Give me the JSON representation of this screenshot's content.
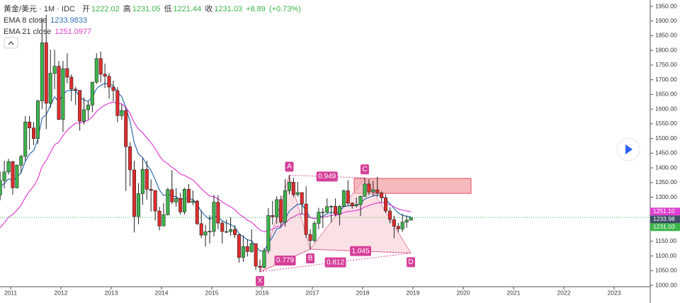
{
  "header": {
    "symbol": "黄金/美元 · 1M · IDC",
    "open_label": "开",
    "open": 1222.02,
    "high_label": "高",
    "high": 1231.05,
    "low_label": "低",
    "low": 1221.44,
    "close_label": "收",
    "close": 1231.03,
    "change": {
      "value": 8.89,
      "label": "+8.89"
    },
    "change_pct": {
      "value": 0.73,
      "label": "(+0.73%)"
    }
  },
  "chart_data": {
    "type": "candlestick",
    "up_color": "#3cb54a",
    "down_color": "#e32b2b",
    "open": [
      1308,
      1357,
      1386,
      1421,
      1332,
      1409,
      1439,
      1556,
      1536,
      1500,
      1628,
      1826,
      1620,
      1722,
      1746,
      1565,
      1738,
      1709,
      1668,
      1664,
      1559,
      1598,
      1614,
      1692,
      1772,
      1719,
      1712,
      1675,
      1663,
      1578,
      1595,
      1472,
      1393,
      1234,
      1312,
      1395,
      1327,
      1323,
      1253,
      1202,
      1240,
      1326,
      1284,
      1296,
      1250,
      1327,
      1282,
      1287,
      1210,
      1171,
      1182,
      1184,
      1283,
      1212,
      1183,
      1183,
      1190,
      1172,
      1095,
      1132,
      1115,
      1142,
      1065,
      1061,
      1118,
      1238,
      1233,
      1292,
      1215,
      1322,
      1351,
      1309,
      1316,
      1277,
      1173,
      1152,
      1211,
      1249,
      1249,
      1268,
      1269,
      1242,
      1269,
      1322,
      1280,
      1271,
      1275,
      1303,
      1345,
      1318,
      1325,
      1315,
      1298,
      1253,
      1224,
      1201,
      1192,
      1215,
      1222.02
    ],
    "high": [
      1387,
      1424,
      1431,
      1424,
      1411,
      1445,
      1576,
      1577,
      1556,
      1632,
      1911,
      1921,
      1803,
      1802,
      1764,
      1764,
      1790,
      1718,
      1676,
      1665,
      1640,
      1627,
      1692,
      1790,
      1796,
      1755,
      1723,
      1697,
      1675,
      1617,
      1608,
      1487,
      1424,
      1348,
      1433,
      1424,
      1361,
      1323,
      1267,
      1280,
      1332,
      1392,
      1331,
      1315,
      1332,
      1345,
      1323,
      1291,
      1255,
      1206,
      1239,
      1307,
      1307,
      1220,
      1224,
      1232,
      1204,
      1175,
      1170,
      1157,
      1191,
      1142,
      1088,
      1127,
      1263,
      1287,
      1303,
      1305,
      1362,
      1375,
      1366,
      1352,
      1317,
      1337,
      1191,
      1219,
      1264,
      1263,
      1296,
      1273,
      1296,
      1273,
      1326,
      1358,
      1283,
      1299,
      1305,
      1366,
      1361,
      1356,
      1369,
      1320,
      1310,
      1266,
      1237,
      1212,
      1243,
      1238,
      1231.05
    ],
    "low": [
      1290,
      1330,
      1377,
      1308,
      1330,
      1381,
      1423,
      1462,
      1478,
      1481,
      1600,
      1532,
      1604,
      1668,
      1562,
      1522,
      1688,
      1627,
      1614,
      1527,
      1548,
      1565,
      1590,
      1686,
      1691,
      1672,
      1636,
      1626,
      1555,
      1563,
      1321,
      1338,
      1180,
      1208,
      1274,
      1292,
      1251,
      1221,
      1187,
      1202,
      1238,
      1277,
      1268,
      1240,
      1241,
      1280,
      1273,
      1205,
      1161,
      1132,
      1142,
      1167,
      1191,
      1142,
      1178,
      1169,
      1162,
      1077,
      1080,
      1098,
      1111,
      1052,
      1046,
      1058,
      1108,
      1207,
      1209,
      1199,
      1200,
      1310,
      1300,
      1302,
      1241,
      1161,
      1123,
      1146,
      1191,
      1195,
      1245,
      1214,
      1236,
      1204,
      1267,
      1271,
      1261,
      1265,
      1236,
      1302,
      1307,
      1302,
      1302,
      1282,
      1246,
      1211,
      1160,
      1180,
      1182,
      1196,
      1221.44
    ],
    "close": [
      1357,
      1386,
      1421,
      1332,
      1409,
      1439,
      1556,
      1536,
      1500,
      1628,
      1826,
      1620,
      1722,
      1746,
      1565,
      1738,
      1709,
      1668,
      1664,
      1559,
      1598,
      1614,
      1692,
      1772,
      1719,
      1712,
      1675,
      1663,
      1578,
      1595,
      1472,
      1393,
      1234,
      1312,
      1395,
      1327,
      1323,
      1253,
      1202,
      1240,
      1326,
      1284,
      1296,
      1250,
      1327,
      1282,
      1287,
      1210,
      1171,
      1182,
      1184,
      1283,
      1212,
      1183,
      1183,
      1190,
      1172,
      1095,
      1132,
      1115,
      1142,
      1065,
      1061,
      1118,
      1238,
      1233,
      1292,
      1215,
      1322,
      1351,
      1309,
      1316,
      1277,
      1173,
      1152,
      1211,
      1249,
      1249,
      1268,
      1269,
      1242,
      1269,
      1322,
      1280,
      1271,
      1275,
      1303,
      1345,
      1318,
      1325,
      1315,
      1298,
      1253,
      1224,
      1201,
      1192,
      1215,
      1222,
      1231.03
    ],
    "series": [
      {
        "name": "EMA 8 close",
        "color": "#2f6fb0",
        "last": 1233.9833,
        "values": [
          1336,
          1347,
          1363,
          1356,
          1368,
          1384,
          1422,
          1447,
          1459,
          1497,
          1570,
          1581,
          1612,
          1642,
          1625,
          1650,
          1663,
          1664,
          1664,
          1641,
          1631,
          1627,
          1641,
          1670,
          1681,
          1688,
          1685,
          1680,
          1657,
          1643,
          1605,
          1558,
          1486,
          1447,
          1435,
          1411,
          1391,
          1360,
          1325,
          1306,
          1310,
          1304,
          1302,
          1290,
          1298,
          1294,
          1293,
          1275,
          1252,
          1236,
          1224,
          1237,
          1231,
          1220,
          1212,
          1207,
          1199,
          1176,
          1166,
          1155,
          1152,
          1133,
          1117,
          1117,
          1144,
          1164,
          1192,
          1197,
          1225,
          1253,
          1265,
          1276,
          1276,
          1253,
          1231,
          1227,
          1232,
          1236,
          1243,
          1249,
          1247,
          1252,
          1268,
          1271,
          1271,
          1272,
          1279,
          1294,
          1299,
          1305,
          1307,
          1305,
          1293,
          1278,
          1261,
          1246,
          1239,
          1235,
          1233.98
        ]
      },
      {
        "name": "EMA 21 close",
        "color": "#e040d0",
        "last": 1251.0977,
        "values": [
          1196,
          1213,
          1232,
          1241,
          1256,
          1273,
          1299,
          1321,
          1337,
          1363,
          1405,
          1425,
          1452,
          1479,
          1487,
          1510,
          1528,
          1541,
          1552,
          1553,
          1557,
          1562,
          1574,
          1592,
          1604,
          1614,
          1620,
          1624,
          1620,
          1618,
          1605,
          1586,
          1554,
          1532,
          1520,
          1502,
          1486,
          1465,
          1441,
          1423,
          1414,
          1402,
          1392,
          1379,
          1374,
          1366,
          1359,
          1345,
          1329,
          1316,
          1304,
          1302,
          1294,
          1284,
          1275,
          1267,
          1258,
          1243,
          1233,
          1222,
          1215,
          1201,
          1188,
          1182,
          1187,
          1191,
          1200,
          1201,
          1212,
          1225,
          1233,
          1241,
          1244,
          1238,
          1230,
          1228,
          1230,
          1232,
          1235,
          1238,
          1238,
          1241,
          1248,
          1251,
          1253,
          1255,
          1259,
          1267,
          1272,
          1277,
          1280,
          1282,
          1279,
          1274,
          1267,
          1260,
          1256,
          1253,
          1251.1
        ]
      }
    ],
    "pattern": [
      {
        "label": "X",
        "bar": 62,
        "price": 1046
      },
      {
        "label": "A",
        "bar": 69,
        "price": 1375
      },
      {
        "label": "B",
        "bar": 74,
        "price": 1123
      },
      {
        "label": "C",
        "bar": 87,
        "price": 1366
      },
      {
        "label": "D",
        "bar": 98,
        "price": 1110
      }
    ],
    "ratios": [
      {
        "label": "0.779",
        "from": "X",
        "to": "B"
      },
      {
        "label": "0.949",
        "from": "A",
        "to": "C"
      },
      {
        "label": "1.045",
        "from": "B",
        "to": "D"
      },
      {
        "label": "0.812",
        "from": "X",
        "to": "D"
      }
    ],
    "zone": {
      "top": 1364,
      "bottom": 1313,
      "color": "#f4a3a6"
    },
    "price_tags": [
      {
        "value": 1251.1,
        "label": "1251.10",
        "color": "#e040d0"
      },
      {
        "value": 1233.98,
        "label": "1233.98",
        "color": "#3d4f66"
      },
      {
        "value": 1231.03,
        "label": "1231.03",
        "color": "#3cb54a"
      }
    ],
    "xlim": [
      2010.789,
      2023.718
    ],
    "xticks": [
      2011,
      2012,
      2013,
      2014,
      2015,
      2016,
      2017,
      2018,
      2019,
      2020,
      2021,
      2022,
      2023
    ],
    "ylim": [
      1000,
      1950
    ],
    "yticks": [
      {
        "value": 1000,
        "label": "1000.00"
      },
      {
        "value": 1050,
        "label": "1050.00"
      },
      {
        "value": 1100,
        "label": "1100.00"
      },
      {
        "value": 1150,
        "label": "1150.00"
      },
      {
        "value": 1200,
        "label": "1200.00"
      },
      {
        "value": 1250,
        "label": "1250.00"
      },
      {
        "value": 1300,
        "label": "1300.00"
      },
      {
        "value": 1350,
        "label": "1350.00"
      },
      {
        "value": 1400,
        "label": "1400.00"
      },
      {
        "value": 1450,
        "label": "1450.00"
      },
      {
        "value": 1500,
        "label": "1500.00"
      },
      {
        "value": 1550,
        "label": "1550.00"
      },
      {
        "value": 1600,
        "label": "1600.00"
      },
      {
        "value": 1650,
        "label": "1650.00"
      },
      {
        "value": 1700,
        "label": "1700.00"
      },
      {
        "value": 1750,
        "label": "1750.00"
      },
      {
        "value": 1800,
        "label": "1800.00"
      },
      {
        "value": 1850,
        "label": "1850.00"
      },
      {
        "value": 1900,
        "label": "1900.00"
      },
      {
        "value": 1950,
        "label": "1950.00"
      }
    ]
  }
}
